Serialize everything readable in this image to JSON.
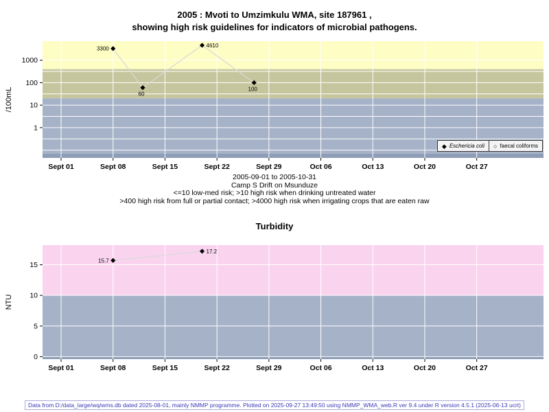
{
  "figure": {
    "title_line1": "2005 : Mvoti to Umzimkulu WMA, site 187961 ,",
    "title_line2": "showing high risk guidelines for indicators of microbial pathogens.",
    "footer": "Data from D:/data_large/wq/wms.db dated 2025-08-01, mainly NMMP programme. Plotted on 2025-09-27 13:49:50 using NMMP_WMA_web.R ver 9.4 under R version 4.5.1 (2025-06-13 ucrt)"
  },
  "captions": [
    "2005-09-01 to 2005-10-31",
    "Camp S Drift on Msunduze",
    "<=10 low-med risk; >10 high risk when drinking untreated water",
    ">400 high risk from full or partial contact; >4000 high risk when irrigating crops that are eaten raw"
  ],
  "colors": {
    "band_high_risk_yellow": "#fdfdc4",
    "band_medium_olive": "#c6c69e",
    "band_low_blue": "#a5b2c7",
    "band_bottom_dark": "#8d9db6",
    "band_turbidity_pink": "#fad4ef",
    "series_line_gray": "#d9d9d9",
    "footer_blue": "#3a3ab8"
  },
  "chart_data": [
    {
      "type": "line",
      "title": "",
      "ylabel": "/100mL",
      "yscale": "log",
      "ylim": [
        0.045,
        7000
      ],
      "yticks": [
        1000,
        100,
        10,
        1
      ],
      "grid_y_values": [
        1000,
        316,
        100,
        31.6,
        10,
        3.16,
        1,
        0.316,
        0.1
      ],
      "xlim_days": [
        -2.5,
        65
      ],
      "x_ticks": [
        {
          "day": 0,
          "label": "Sept 01"
        },
        {
          "day": 7,
          "label": "Sept 08"
        },
        {
          "day": 14,
          "label": "Sept 15"
        },
        {
          "day": 21,
          "label": "Sept 22"
        },
        {
          "day": 28,
          "label": "Sept 29"
        },
        {
          "day": 35,
          "label": "Oct 06"
        },
        {
          "day": 42,
          "label": "Oct 13"
        },
        {
          "day": 49,
          "label": "Oct 20"
        },
        {
          "day": 56,
          "label": "Oct 27"
        }
      ],
      "bands": [
        {
          "from": 400,
          "to": 7000,
          "color": "#fdfdc4"
        },
        {
          "from": 20,
          "to": 400,
          "color": "#c6c69e"
        },
        {
          "from": 0.07,
          "to": 20,
          "color": "#a5b2c7"
        },
        {
          "from": 0.045,
          "to": 0.07,
          "color": "#8d9db6"
        }
      ],
      "series": [
        {
          "name": "Eschericia coli",
          "marker": "filled-diamond",
          "points": [
            {
              "day": 7,
              "value": 3300,
              "label": "3300",
              "label_pos": "left"
            },
            {
              "day": 11,
              "value": 60,
              "label": "60",
              "label_pos": "below"
            },
            {
              "day": 19,
              "value": 4610,
              "label": "4610",
              "label_pos": "right"
            },
            {
              "day": 26,
              "value": 100,
              "label": "100",
              "label_pos": "below"
            }
          ]
        },
        {
          "name": "faecal coliforms",
          "marker": "open-circle",
          "points": []
        }
      ]
    },
    {
      "type": "line",
      "title": "Turbidity",
      "ylabel": "NTU",
      "yscale": "linear",
      "ylim": [
        -0.4,
        18.2
      ],
      "yticks": [
        0,
        5,
        10,
        15
      ],
      "grid_y_values": [
        0,
        5,
        10,
        15
      ],
      "xlim_days": [
        -2.5,
        65
      ],
      "x_ticks": [
        {
          "day": 0,
          "label": "Sept 01"
        },
        {
          "day": 7,
          "label": "Sept 08"
        },
        {
          "day": 14,
          "label": "Sept 15"
        },
        {
          "day": 21,
          "label": "Sept 22"
        },
        {
          "day": 28,
          "label": "Sept 29"
        },
        {
          "day": 35,
          "label": "Oct 06"
        },
        {
          "day": 42,
          "label": "Oct 13"
        },
        {
          "day": 49,
          "label": "Oct 20"
        },
        {
          "day": 56,
          "label": "Oct 27"
        }
      ],
      "bands": [
        {
          "from": 10,
          "to": 18.2,
          "color": "#fad4ef"
        },
        {
          "from": 0,
          "to": 10,
          "color": "#a5b2c7"
        },
        {
          "from": -0.4,
          "to": 0,
          "color": "#8d9db6"
        }
      ],
      "series": [
        {
          "name": "Turbidity",
          "marker": "filled-diamond",
          "points": [
            {
              "day": 7,
              "value": 15.7,
              "label": "15.7",
              "label_pos": "left"
            },
            {
              "day": 19,
              "value": 17.2,
              "label": "17.2",
              "label_pos": "right"
            }
          ]
        }
      ]
    }
  ]
}
